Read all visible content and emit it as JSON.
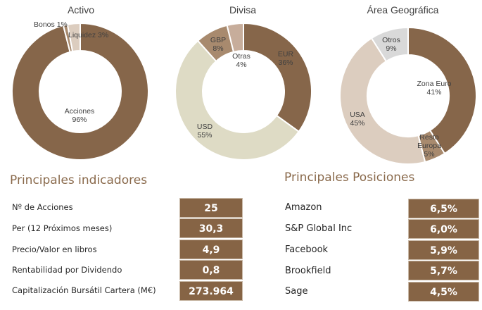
{
  "charts": {
    "activo": {
      "title": "Activo",
      "labels": {
        "acciones": {
          "name": "Acciones",
          "pct": "96%"
        },
        "bonos": "Bonos  1%",
        "liquidez": "Liquidez  3%"
      }
    },
    "divisa": {
      "title": "Divisa",
      "labels": {
        "eur": {
          "name": "EUR",
          "pct": "36%"
        },
        "usd": {
          "name": "USD",
          "pct": "55%"
        },
        "gbp": {
          "name": "GBP",
          "pct": "8%"
        },
        "otras": {
          "name": "Otras",
          "pct": "4%"
        }
      }
    },
    "area": {
      "title": "Área Geográfica",
      "labels": {
        "zona_euro": {
          "name": "Zona  Euro",
          "pct": "41%"
        },
        "resto1": "Resto",
        "resto2": "Europa",
        "resto_pct": "5%",
        "usa": {
          "name": "USA",
          "pct": "45%"
        },
        "otros": {
          "name": "Otros",
          "pct": "9%"
        }
      }
    }
  },
  "chart_data": [
    {
      "type": "pie",
      "title": "Activo",
      "categories": [
        "Acciones",
        "Bonos",
        "Liquidez"
      ],
      "values": [
        96,
        1,
        3
      ],
      "colors": [
        "#86664a",
        "#a88a6e",
        "#dccdbf"
      ]
    },
    {
      "type": "pie",
      "title": "Divisa",
      "categories": [
        "EUR",
        "USD",
        "GBP",
        "Otras"
      ],
      "values": [
        36,
        55,
        8,
        4
      ],
      "colors": [
        "#86664a",
        "#dedbc5",
        "#a88a6e",
        "#c7ad9b"
      ]
    },
    {
      "type": "pie",
      "title": "Área Geográfica",
      "categories": [
        "Zona Euro",
        "Resto Europa",
        "USA",
        "Otros"
      ],
      "values": [
        41,
        5,
        45,
        9
      ],
      "colors": [
        "#86664a",
        "#a88a6e",
        "#dccdbf",
        "#d9d9d9"
      ]
    },
    {
      "type": "table",
      "title": "Principales indicadores",
      "rows": [
        [
          "Nº de Acciones",
          "25"
        ],
        [
          "Per (12 Próximos meses)",
          "30,3"
        ],
        [
          "Precio/Valor en libros",
          "4,9"
        ],
        [
          "Rentabilidad por Dividendo",
          "0,8"
        ],
        [
          "Capitalización Bursátil Cartera (M€)",
          "273.964"
        ]
      ]
    },
    {
      "type": "table",
      "title": "Principales Posiciones",
      "rows": [
        [
          "Amazon",
          "6,5%"
        ],
        [
          "S&P Global Inc",
          "6,0%"
        ],
        [
          "Facebook",
          "5,9%"
        ],
        [
          "Brookfield",
          "5,7%"
        ],
        [
          "Sage",
          "4,5%"
        ]
      ]
    }
  ],
  "indicadores": {
    "title": "Principales indicadores",
    "rows": [
      {
        "label": "Nº de Acciones",
        "value": "25"
      },
      {
        "label": "Per (12 Próximos meses)",
        "value": "30,3"
      },
      {
        "label": "Precio/Valor en libros",
        "value": "4,9"
      },
      {
        "label": "Rentabilidad por Dividendo",
        "value": "0,8"
      },
      {
        "label": "Capitalización Bursátil Cartera (M€)",
        "value": "273.964"
      }
    ]
  },
  "posiciones": {
    "title": "Principales Posiciones",
    "rows": [
      {
        "label": "Amazon",
        "value": "6,5%"
      },
      {
        "label": "S&P Global Inc",
        "value": "6,0%"
      },
      {
        "label": "Facebook",
        "value": "5,9%"
      },
      {
        "label": "Brookfield",
        "value": "5,7%"
      },
      {
        "label": "Sage",
        "value": "4,5%"
      }
    ]
  }
}
